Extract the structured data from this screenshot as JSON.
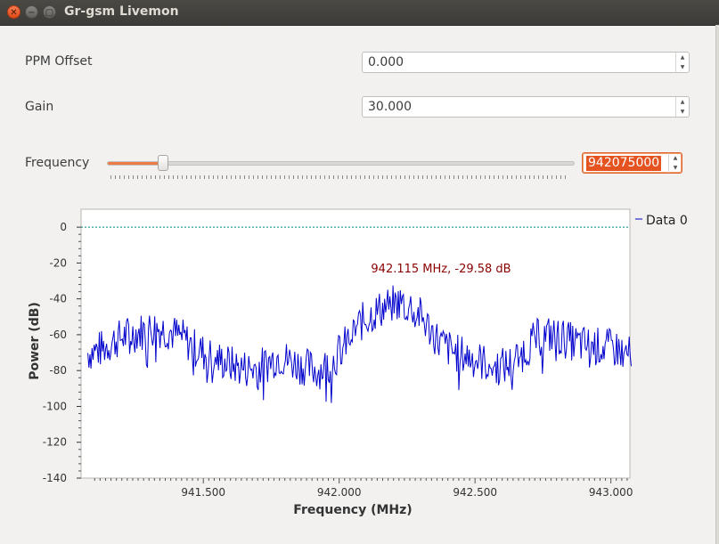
{
  "window": {
    "title": "Gr-gsm Livemon"
  },
  "controls": {
    "ppm": {
      "label": "PPM Offset",
      "value": "0.000"
    },
    "gain": {
      "label": "Gain",
      "value": "30.000"
    },
    "frequency": {
      "label": "Frequency",
      "value": "942075000",
      "slider_fraction": 0.12
    }
  },
  "colors": {
    "accent": "#e45320",
    "trace": "#0000cc",
    "marker": "#8b0000",
    "background": "#f2f1f0"
  },
  "chart_data": {
    "type": "line",
    "xlabel": "Frequency (MHz)",
    "ylabel": "Power (dB)",
    "xlim": [
      941.05,
      943.07
    ],
    "ylim": [
      -140,
      10
    ],
    "xticks": [
      941.5,
      942.0,
      942.5,
      943.0
    ],
    "xtick_labels": [
      "941.500",
      "942.000",
      "942.500",
      "943.000"
    ],
    "yticks": [
      0,
      -20,
      -40,
      -60,
      -80,
      -100,
      -120,
      -140
    ],
    "ytick_labels": [
      "0",
      "-20",
      "-40",
      "-60",
      "-80",
      "-100",
      "-120",
      "-140"
    ],
    "grid": false,
    "legend_position": "top-right",
    "series": [
      {
        "name": "Data 0",
        "color": "#0000cc",
        "x": [
          941.075,
          941.125,
          941.175,
          941.225,
          941.275,
          941.325,
          941.375,
          941.425,
          941.475,
          941.525,
          941.575,
          941.625,
          941.675,
          941.725,
          941.775,
          941.825,
          941.875,
          941.925,
          941.975,
          942.025,
          942.075,
          942.125,
          942.175,
          942.225,
          942.275,
          942.325,
          942.375,
          942.425,
          942.475,
          942.525,
          942.575,
          942.625,
          942.675,
          942.725,
          942.775,
          942.825,
          942.875,
          942.925,
          942.975,
          943.025,
          943.075
        ],
        "y": [
          -70,
          -68,
          -63,
          -60,
          -58,
          -56,
          -58,
          -62,
          -68,
          -72,
          -75,
          -78,
          -79,
          -77,
          -72,
          -75,
          -78,
          -80,
          -75,
          -65,
          -54,
          -48,
          -44,
          -42,
          -45,
          -55,
          -65,
          -70,
          -72,
          -75,
          -78,
          -77,
          -70,
          -62,
          -60,
          -62,
          -65,
          -66,
          -67,
          -68,
          -72
        ]
      }
    ],
    "annotation": "942.115 MHz, -29.58 dB"
  }
}
